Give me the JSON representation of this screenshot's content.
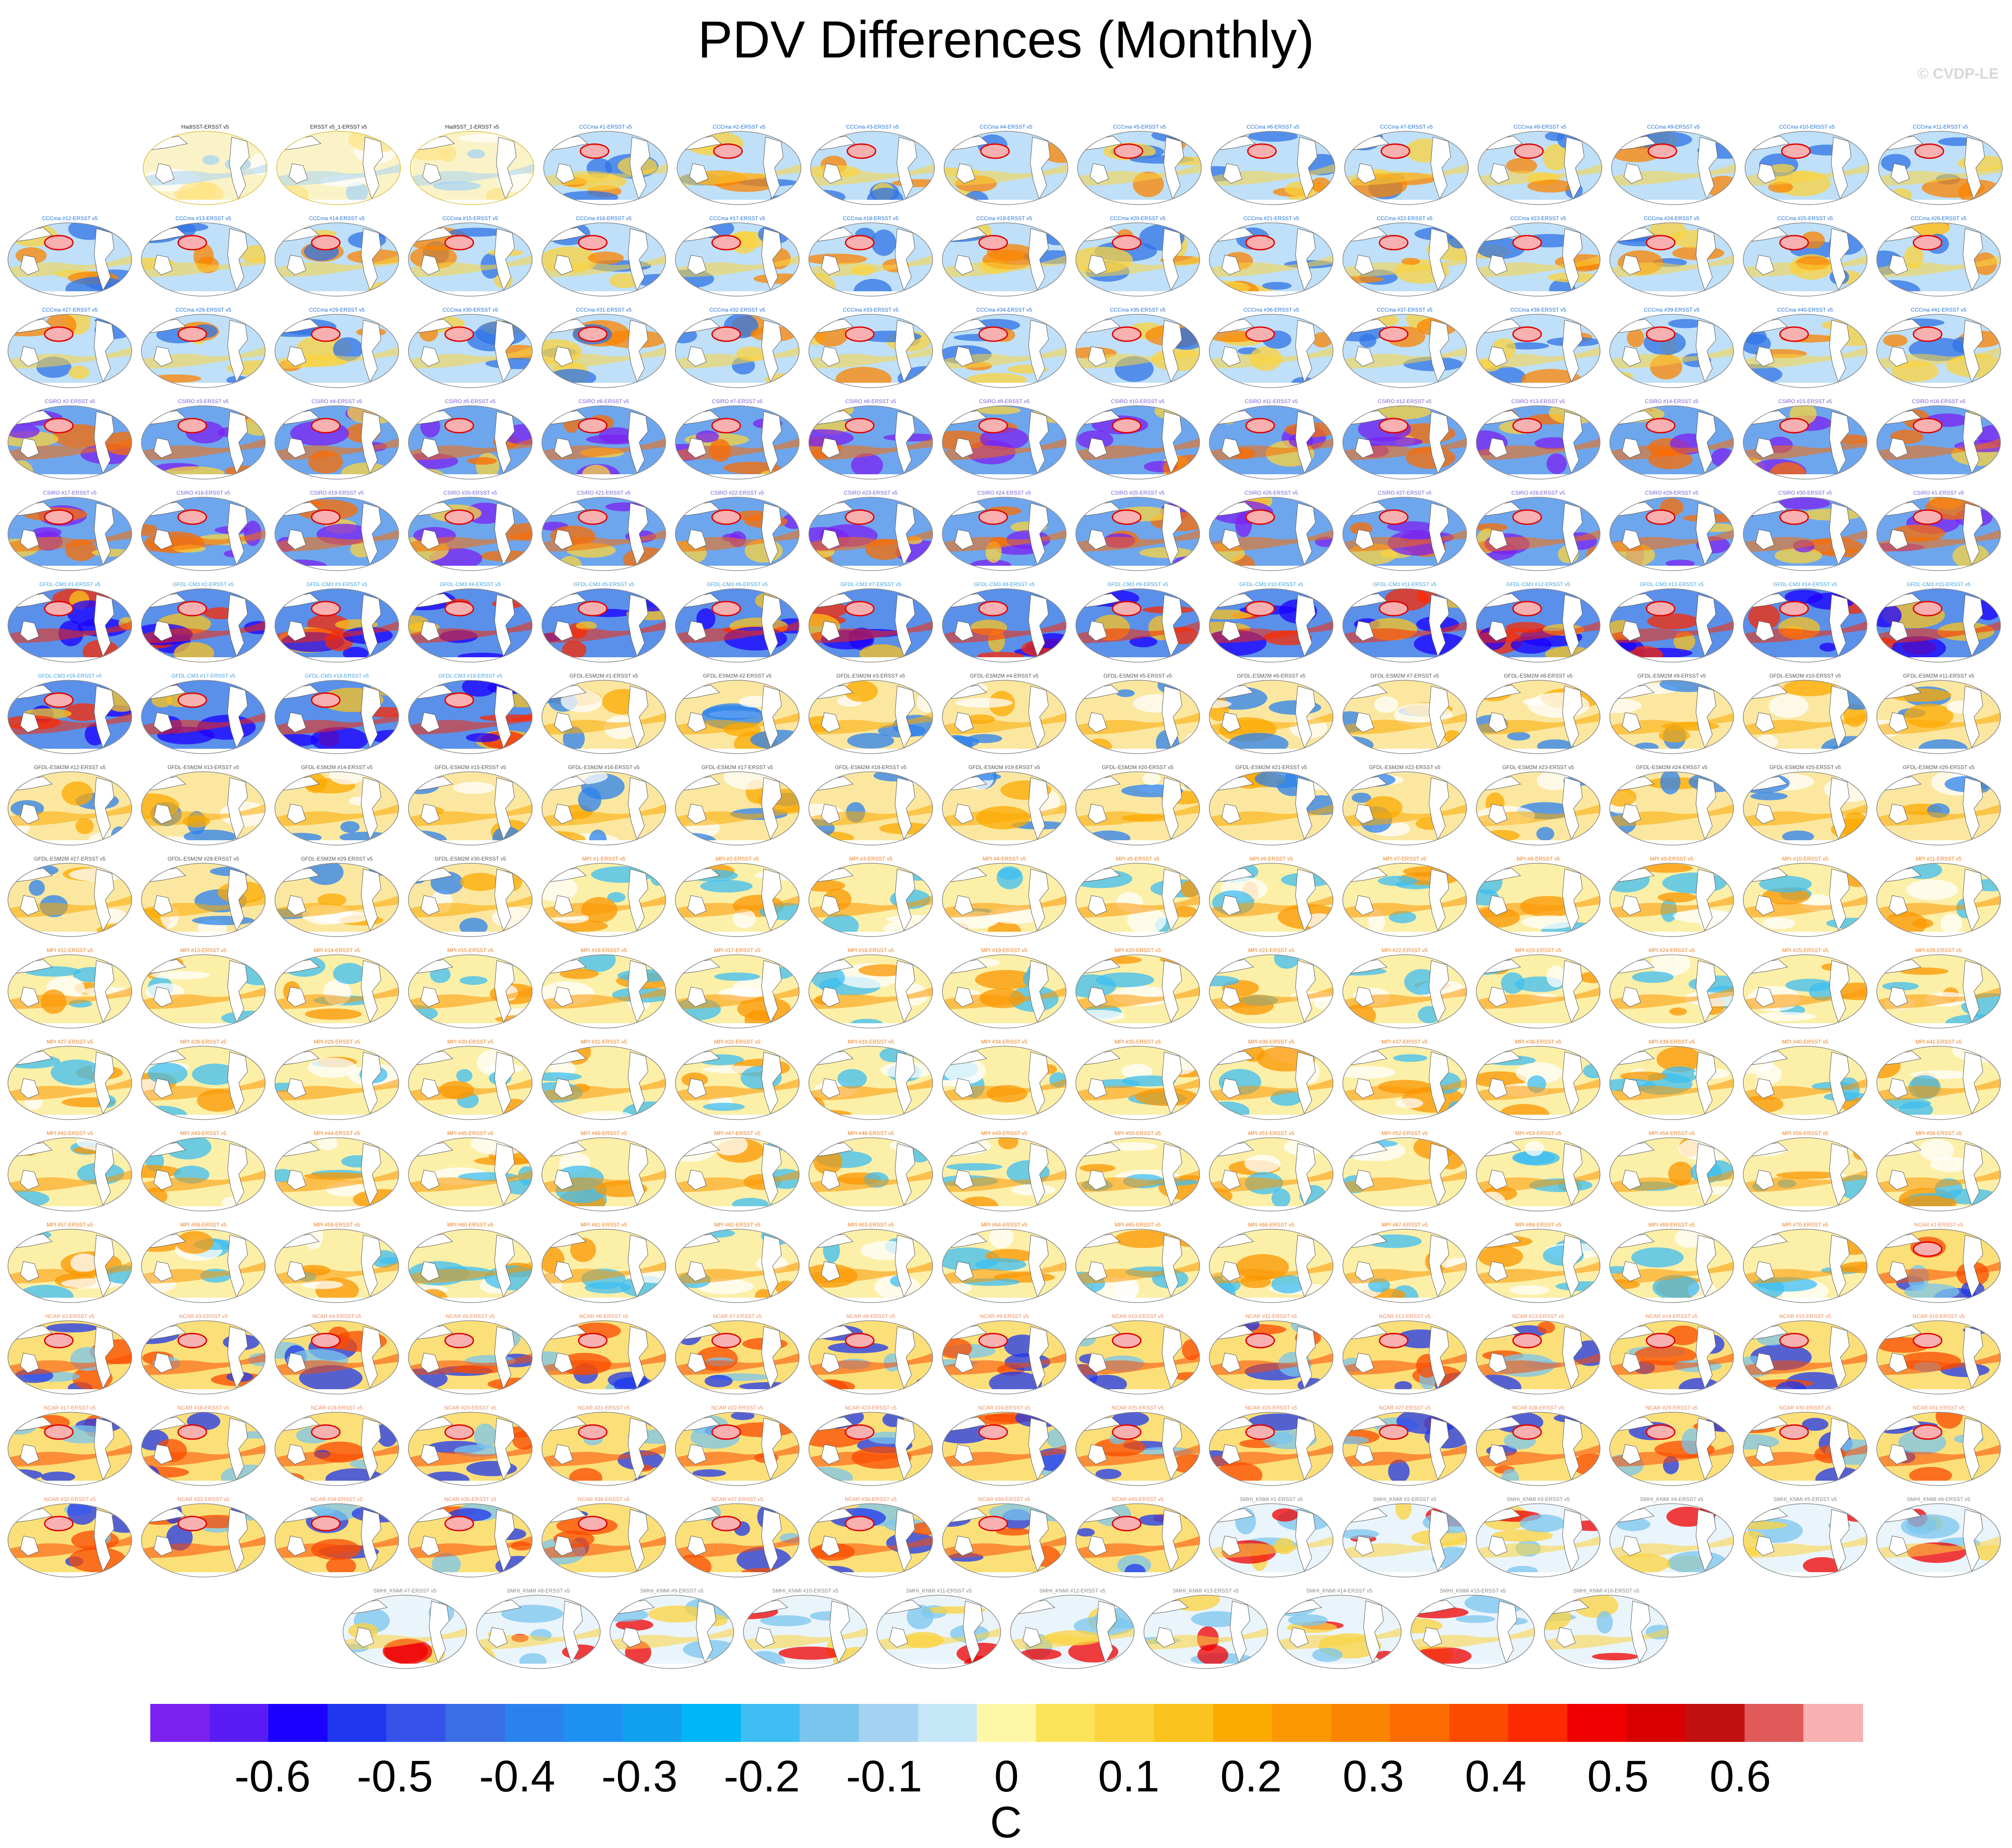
{
  "title": "PDV Differences (Monthly)",
  "credit": "© CVDP-LE",
  "chart_data": {
    "type": "heatmap",
    "title": "PDV Differences (Monthly)",
    "description_kind": "grid of global SST difference maps, model/observation minus ERSST v5",
    "colorbar": {
      "unit": "C",
      "ticks": [
        "-0.6",
        "-0.5",
        "-0.4",
        "-0.3",
        "-0.2",
        "-0.1",
        "0",
        "0.1",
        "0.2",
        "0.3",
        "0.4",
        "0.5",
        "0.6"
      ],
      "range": [
        -0.7,
        0.7
      ],
      "levels": 28,
      "colors": [
        "#7b22f0",
        "#5a1cf5",
        "#1c00ff",
        "#1f37ee",
        "#3553e8",
        "#3a6ee6",
        "#2b82ef",
        "#1e90f2",
        "#12a0f0",
        "#00b6f7",
        "#3ebef2",
        "#79c5ee",
        "#a4d2f2",
        "#c5e6f7",
        "#fff7a8",
        "#fbe35a",
        "#fbd33d",
        "#fbc31e",
        "#fca900",
        "#fb9700",
        "#fb8400",
        "#fb6c00",
        "#fb4b00",
        "#fb2a00",
        "#f00000",
        "#d80000",
        "#c01010",
        "#e05a5a",
        "#f8b0b0"
      ]
    },
    "panels": {
      "row0": [
        "HadISST-ERSST v5",
        "ERSST v5_1-ERSST v5",
        "HadISST_1-ERSST v5",
        "CCCma #1-ERSST v5",
        "CCCma #2-ERSST v5",
        "CCCma #3-ERSST v5",
        "CCCma #4-ERSST v5",
        "CCCma #5-ERSST v5",
        "CCCma #6-ERSST v5",
        "CCCma #7-ERSST v5",
        "CCCma #8-ERSST v5",
        "CCCma #9-ERSST v5",
        "CCCma #10-ERSST v5",
        "CCCma #11-ERSST v5"
      ],
      "row1": [
        "CCCma #12-ERSST v5",
        "CCCma #13-ERSST v5",
        "CCCma #14-ERSST v5",
        "CCCma #15-ERSST v5",
        "CCCma #16-ERSST v5",
        "CCCma #17-ERSST v5",
        "CCCma #18-ERSST v5",
        "CCCma #19-ERSST v5",
        "CCCma #20-ERSST v5",
        "CCCma #21-ERSST v5",
        "CCCma #22-ERSST v5",
        "CCCma #23-ERSST v5",
        "CCCma #24-ERSST v5",
        "CCCma #25-ERSST v5",
        "CCCma #26-ERSST v5"
      ],
      "row2": [
        "CCCma #27-ERSST v5",
        "CCCma #28-ERSST v5",
        "CCCma #29-ERSST v5",
        "CCCma #30-ERSST v5",
        "CCCma #31-ERSST v5",
        "CCCma #32-ERSST v5",
        "CCCma #33-ERSST v5",
        "CCCma #34-ERSST v5",
        "CCCma #35-ERSST v5",
        "CCCma #36-ERSST v5",
        "CCCma #37-ERSST v5",
        "CCCma #38-ERSST v5",
        "CCCma #39-ERSST v5",
        "CCCma #40-ERSST v5",
        "CCCma #41-ERSST v5"
      ],
      "row3": [
        "CSIRO #2-ERSST v5",
        "CSIRO #3-ERSST v5",
        "CSIRO #4-ERSST v5",
        "CSIRO #5-ERSST v5",
        "CSIRO #6-ERSST v5",
        "CSIRO #7-ERSST v5",
        "CSIRO #8-ERSST v5",
        "CSIRO #9-ERSST v5",
        "CSIRO #10-ERSST v5",
        "CSIRO #11-ERSST v5",
        "CSIRO #12-ERSST v5",
        "CSIRO #13-ERSST v5",
        "CSIRO #14-ERSST v5",
        "CSIRO #15-ERSST v5",
        "CSIRO #16-ERSST v5"
      ],
      "row4": [
        "CSIRO #17-ERSST v5",
        "CSIRO #18-ERSST v5",
        "CSIRO #19-ERSST v5",
        "CSIRO #20-ERSST v5",
        "CSIRO #21-ERSST v5",
        "CSIRO #22-ERSST v5",
        "CSIRO #23-ERSST v5",
        "CSIRO #24-ERSST v5",
        "CSIRO #25-ERSST v5",
        "CSIRO #26-ERSST v5",
        "CSIRO #27-ERSST v5",
        "CSIRO #28-ERSST v5",
        "CSIRO #29-ERSST v5",
        "CSIRO #30-ERSST v5",
        "CSIRO #1-ERSST v5"
      ],
      "row5": [
        "GFDL-CM3 #1-ERSST v5",
        "GFDL-CM3 #2-ERSST v5",
        "GFDL-CM3 #3-ERSST v5",
        "GFDL-CM3 #4-ERSST v5",
        "GFDL-CM3 #5-ERSST v5",
        "GFDL-CM3 #6-ERSST v5",
        "GFDL-CM3 #7-ERSST v5",
        "GFDL-CM3 #8-ERSST v5",
        "GFDL-CM3 #9-ERSST v5",
        "GFDL-CM3 #10-ERSST v5",
        "GFDL-CM3 #11-ERSST v5",
        "GFDL-CM3 #12-ERSST v5",
        "GFDL-CM3 #13-ERSST v5",
        "GFDL-CM3 #14-ERSST v5",
        "GFDL-CM3 #15-ERSST v5"
      ],
      "row6": [
        "GFDL-CM3 #16-ERSST v5",
        "GFDL-CM3 #17-ERSST v5",
        "GFDL-CM3 #18-ERSST v5",
        "GFDL-CM3 #19-ERSST v5",
        "GFDL-ESM2M #1-ERSST v5",
        "GFDL-ESM2M #2-ERSST v5",
        "GFDL-ESM2M #3-ERSST v5",
        "GFDL-ESM2M #4-ERSST v5",
        "GFDL-ESM2M #5-ERSST v5",
        "GFDL-ESM2M #6-ERSST v5",
        "GFDL-ESM2M #7-ERSST v5",
        "GFDL-ESM2M #8-ERSST v5",
        "GFDL-ESM2M #9-ERSST v5",
        "GFDL-ESM2M #10-ERSST v5",
        "GFDL-ESM2M #11-ERSST v5"
      ],
      "row7": [
        "GFDL-ESM2M #12-ERSST v5",
        "GFDL-ESM2M #13-ERSST v5",
        "GFDL-ESM2M #14-ERSST v5",
        "GFDL-ESM2M #15-ERSST v5",
        "GFDL-ESM2M #16-ERSST v5",
        "GFDL-ESM2M #17-ERSST v5",
        "GFDL-ESM2M #18-ERSST v5",
        "GFDL-ESM2M #19-ERSST v5",
        "GFDL-ESM2M #20-ERSST v5",
        "GFDL-ESM2M #21-ERSST v5",
        "GFDL-ESM2M #22-ERSST v5",
        "GFDL-ESM2M #23-ERSST v5",
        "GFDL-ESM2M #24-ERSST v5",
        "GFDL-ESM2M #25-ERSST v5",
        "GFDL-ESM2M #26-ERSST v5"
      ],
      "row8": [
        "GFDL-ESM2M #27-ERSST v5",
        "GFDL-ESM2M #28-ERSST v5",
        "GFDL-ESM2M #29-ERSST v5",
        "GFDL-ESM2M #30-ERSST v5",
        "MPI #1-ERSST v5",
        "MPI #2-ERSST v5",
        "MPI #3-ERSST v5",
        "MPI #4-ERSST v5",
        "MPI #5-ERSST v5",
        "MPI #6-ERSST v5",
        "MPI #7-ERSST v5",
        "MPI #8-ERSST v5",
        "MPI #9-ERSST v5",
        "MPI #10-ERSST v5",
        "MPI #11-ERSST v5"
      ],
      "row9": [
        "MPI #12-ERSST v5",
        "MPI #13-ERSST v5",
        "MPI #14-ERSST v5",
        "MPI #15-ERSST v5",
        "MPI #16-ERSST v5",
        "MPI #17-ERSST v5",
        "MPI #18-ERSST v5",
        "MPI #19-ERSST v5",
        "MPI #20-ERSST v5",
        "MPI #21-ERSST v5",
        "MPI #22-ERSST v5",
        "MPI #23-ERSST v5",
        "MPI #24-ERSST v5",
        "MPI #25-ERSST v5",
        "MPI #26-ERSST v5"
      ],
      "row10": [
        "MPI #27-ERSST v5",
        "MPI #28-ERSST v5",
        "MPI #29-ERSST v5",
        "MPI #30-ERSST v5",
        "MPI #31-ERSST v5",
        "MPI #32-ERSST v5",
        "MPI #33-ERSST v5",
        "MPI #34-ERSST v5",
        "MPI #35-ERSST v5",
        "MPI #36-ERSST v5",
        "MPI #37-ERSST v5",
        "MPI #38-ERSST v5",
        "MPI #39-ERSST v5",
        "MPI #40-ERSST v5",
        "MPI #41-ERSST v5"
      ],
      "row11": [
        "MPI #42-ERSST v5",
        "MPI #43-ERSST v5",
        "MPI #44-ERSST v5",
        "MPI #45-ERSST v5",
        "MPI #46-ERSST v5",
        "MPI #47-ERSST v5",
        "MPI #48-ERSST v5",
        "MPI #49-ERSST v5",
        "MPI #50-ERSST v5",
        "MPI #51-ERSST v5",
        "MPI #52-ERSST v5",
        "MPI #53-ERSST v5",
        "MPI #54-ERSST v5",
        "MPI #55-ERSST v5",
        "MPI #56-ERSST v5"
      ],
      "row12": [
        "MPI #57-ERSST v5",
        "MPI #58-ERSST v5",
        "MPI #59-ERSST v5",
        "MPI #60-ERSST v5",
        "MPI #61-ERSST v5",
        "MPI #62-ERSST v5",
        "MPI #63-ERSST v5",
        "MPI #64-ERSST v5",
        "MPI #65-ERSST v5",
        "MPI #66-ERSST v5",
        "MPI #67-ERSST v5",
        "MPI #68-ERSST v5",
        "MPI #69-ERSST v5",
        "MPI #70-ERSST v5",
        "NCAR #1-ERSST v5"
      ],
      "row13": [
        "NCAR #2-ERSST v5",
        "NCAR #3-ERSST v5",
        "NCAR #4-ERSST v5",
        "NCAR #5-ERSST v5",
        "NCAR #6-ERSST v5",
        "NCAR #7-ERSST v5",
        "NCAR #8-ERSST v5",
        "NCAR #9-ERSST v5",
        "NCAR #10-ERSST v5",
        "NCAR #11-ERSST v5",
        "NCAR #12-ERSST v5",
        "NCAR #13-ERSST v5",
        "NCAR #14-ERSST v5",
        "NCAR #15-ERSST v5",
        "NCAR #16-ERSST v5"
      ],
      "row14": [
        "NCAR #17-ERSST v5",
        "NCAR #18-ERSST v5",
        "NCAR #19-ERSST v5",
        "NCAR #20-ERSST v5",
        "NCAR #21-ERSST v5",
        "NCAR #22-ERSST v5",
        "NCAR #23-ERSST v5",
        "NCAR #24-ERSST v5",
        "NCAR #25-ERSST v5",
        "NCAR #26-ERSST v5",
        "NCAR #27-ERSST v5",
        "NCAR #28-ERSST v5",
        "NCAR #29-ERSST v5",
        "NCAR #30-ERSST v5",
        "NCAR #31-ERSST v5"
      ],
      "row15": [
        "NCAR #32-ERSST v5",
        "NCAR #33-ERSST v5",
        "NCAR #34-ERSST v5",
        "NCAR #35-ERSST v5",
        "NCAR #36-ERSST v5",
        "NCAR #37-ERSST v5",
        "NCAR #38-ERSST v5",
        "NCAR #39-ERSST v5",
        "NCAR #40-ERSST v5",
        "SMHI_KNMI #1-ERSST v5",
        "SMHI_KNMI #2-ERSST v5",
        "SMHI_KNMI #3-ERSST v5",
        "SMHI_KNMI #4-ERSST v5",
        "SMHI_KNMI #5-ERSST v5",
        "SMHI_KNMI #6-ERSST v5"
      ],
      "row16": [
        "SMHI_KNMI #7-ERSST v5",
        "SMHI_KNMI #8-ERSST v5",
        "SMHI_KNMI #9-ERSST v5",
        "SMHI_KNMI #10-ERSST v5",
        "SMHI_KNMI #11-ERSST v5",
        "SMHI_KNMI #12-ERSST v5",
        "SMHI_KNMI #13-ERSST v5",
        "SMHI_KNMI #14-ERSST v5",
        "SMHI_KNMI #15-ERSST v5",
        "SMHI_KNMI #16-ERSST v5"
      ]
    },
    "panel_styles": {
      "row0": [
        "obs",
        "obs",
        "obs",
        "ccc",
        "ccc",
        "ccc",
        "ccc",
        "ccc",
        "ccc",
        "ccc",
        "ccc",
        "ccc",
        "ccc",
        "ccc"
      ],
      "row1": [
        "ccc",
        "ccc",
        "ccc",
        "ccc",
        "ccc",
        "ccc",
        "ccc",
        "ccc",
        "ccc",
        "ccc",
        "ccc",
        "ccc",
        "ccc",
        "ccc",
        "ccc"
      ],
      "row2": [
        "ccc",
        "ccc",
        "ccc",
        "ccc",
        "ccc",
        "ccc",
        "ccc",
        "ccc",
        "ccc",
        "ccc",
        "ccc",
        "ccc",
        "ccc",
        "ccc",
        "ccc"
      ],
      "row3": [
        "csiro",
        "csiro",
        "csiro",
        "csiro",
        "csiro",
        "csiro",
        "csiro",
        "csiro",
        "csiro",
        "csiro",
        "csiro",
        "csiro",
        "csiro",
        "csiro",
        "csiro"
      ],
      "row4": [
        "csiro",
        "csiro",
        "csiro",
        "csiro",
        "csiro",
        "csiro",
        "csiro",
        "csiro",
        "csiro",
        "csiro",
        "csiro",
        "csiro",
        "csiro",
        "csiro",
        "csiro"
      ],
      "row5": [
        "gfdlcm3",
        "gfdlcm3",
        "gfdlcm3",
        "gfdlcm3",
        "gfdlcm3",
        "gfdlcm3",
        "gfdlcm3",
        "gfdlcm3",
        "gfdlcm3",
        "gfdlcm3",
        "gfdlcm3",
        "gfdlcm3",
        "gfdlcm3",
        "gfdlcm3",
        "gfdlcm3"
      ],
      "row6": [
        "gfdlcm3",
        "gfdlcm3",
        "gfdlcm3",
        "gfdlcm3",
        "esm",
        "esm",
        "esm",
        "esm",
        "esm",
        "esm",
        "esm",
        "esm",
        "esm",
        "esm",
        "esm"
      ],
      "row7": [
        "esm",
        "esm",
        "esm",
        "esm",
        "esm",
        "esm",
        "esm",
        "esm",
        "esm",
        "esm",
        "esm",
        "esm",
        "esm",
        "esm",
        "esm"
      ],
      "row8": [
        "esm",
        "esm",
        "esm",
        "esm",
        "mpi",
        "mpi",
        "mpi",
        "mpi",
        "mpi",
        "mpi",
        "mpi",
        "mpi",
        "mpi",
        "mpi",
        "mpi"
      ],
      "row9": [
        "mpi",
        "mpi",
        "mpi",
        "mpi",
        "mpi",
        "mpi",
        "mpi",
        "mpi",
        "mpi",
        "mpi",
        "mpi",
        "mpi",
        "mpi",
        "mpi",
        "mpi"
      ],
      "row10": [
        "mpi",
        "mpi",
        "mpi",
        "mpi",
        "mpi",
        "mpi",
        "mpi",
        "mpi",
        "mpi",
        "mpi",
        "mpi",
        "mpi",
        "mpi",
        "mpi",
        "mpi"
      ],
      "row11": [
        "mpi",
        "mpi",
        "mpi",
        "mpi",
        "mpi",
        "mpi",
        "mpi",
        "mpi",
        "mpi",
        "mpi",
        "mpi",
        "mpi",
        "mpi",
        "mpi",
        "mpi"
      ],
      "row12": [
        "mpi",
        "mpi",
        "mpi",
        "mpi",
        "mpi",
        "mpi",
        "mpi",
        "mpi",
        "mpi",
        "mpi",
        "mpi",
        "mpi",
        "mpi",
        "mpi",
        "ncar"
      ],
      "row13": [
        "ncar",
        "ncar",
        "ncar",
        "ncar",
        "ncar",
        "ncar",
        "ncar",
        "ncar",
        "ncar",
        "ncar",
        "ncar",
        "ncar",
        "ncar",
        "ncar",
        "ncar"
      ],
      "row14": [
        "ncar",
        "ncar",
        "ncar",
        "ncar",
        "ncar",
        "ncar",
        "ncar",
        "ncar",
        "ncar",
        "ncar",
        "ncar",
        "ncar",
        "ncar",
        "ncar",
        "ncar"
      ],
      "row15": [
        "ncar",
        "ncar",
        "ncar",
        "ncar",
        "ncar",
        "ncar",
        "ncar",
        "ncar",
        "ncar",
        "smhi",
        "smhi",
        "smhi",
        "smhi",
        "smhi",
        "smhi"
      ],
      "row16": [
        "smhi",
        "smhi",
        "smhi",
        "smhi",
        "smhi",
        "smhi",
        "smhi",
        "smhi",
        "smhi",
        "smhi"
      ]
    },
    "label_colors": {
      "obs": "#222222",
      "ccc": "#1e6fd9",
      "csiro": "#7a5ad6",
      "gfdlcm3": "#3fa2e0",
      "esm": "#555555",
      "mpi": "#ee7d1a",
      "ncar": "#f08a5d",
      "smhi": "#888888"
    }
  }
}
